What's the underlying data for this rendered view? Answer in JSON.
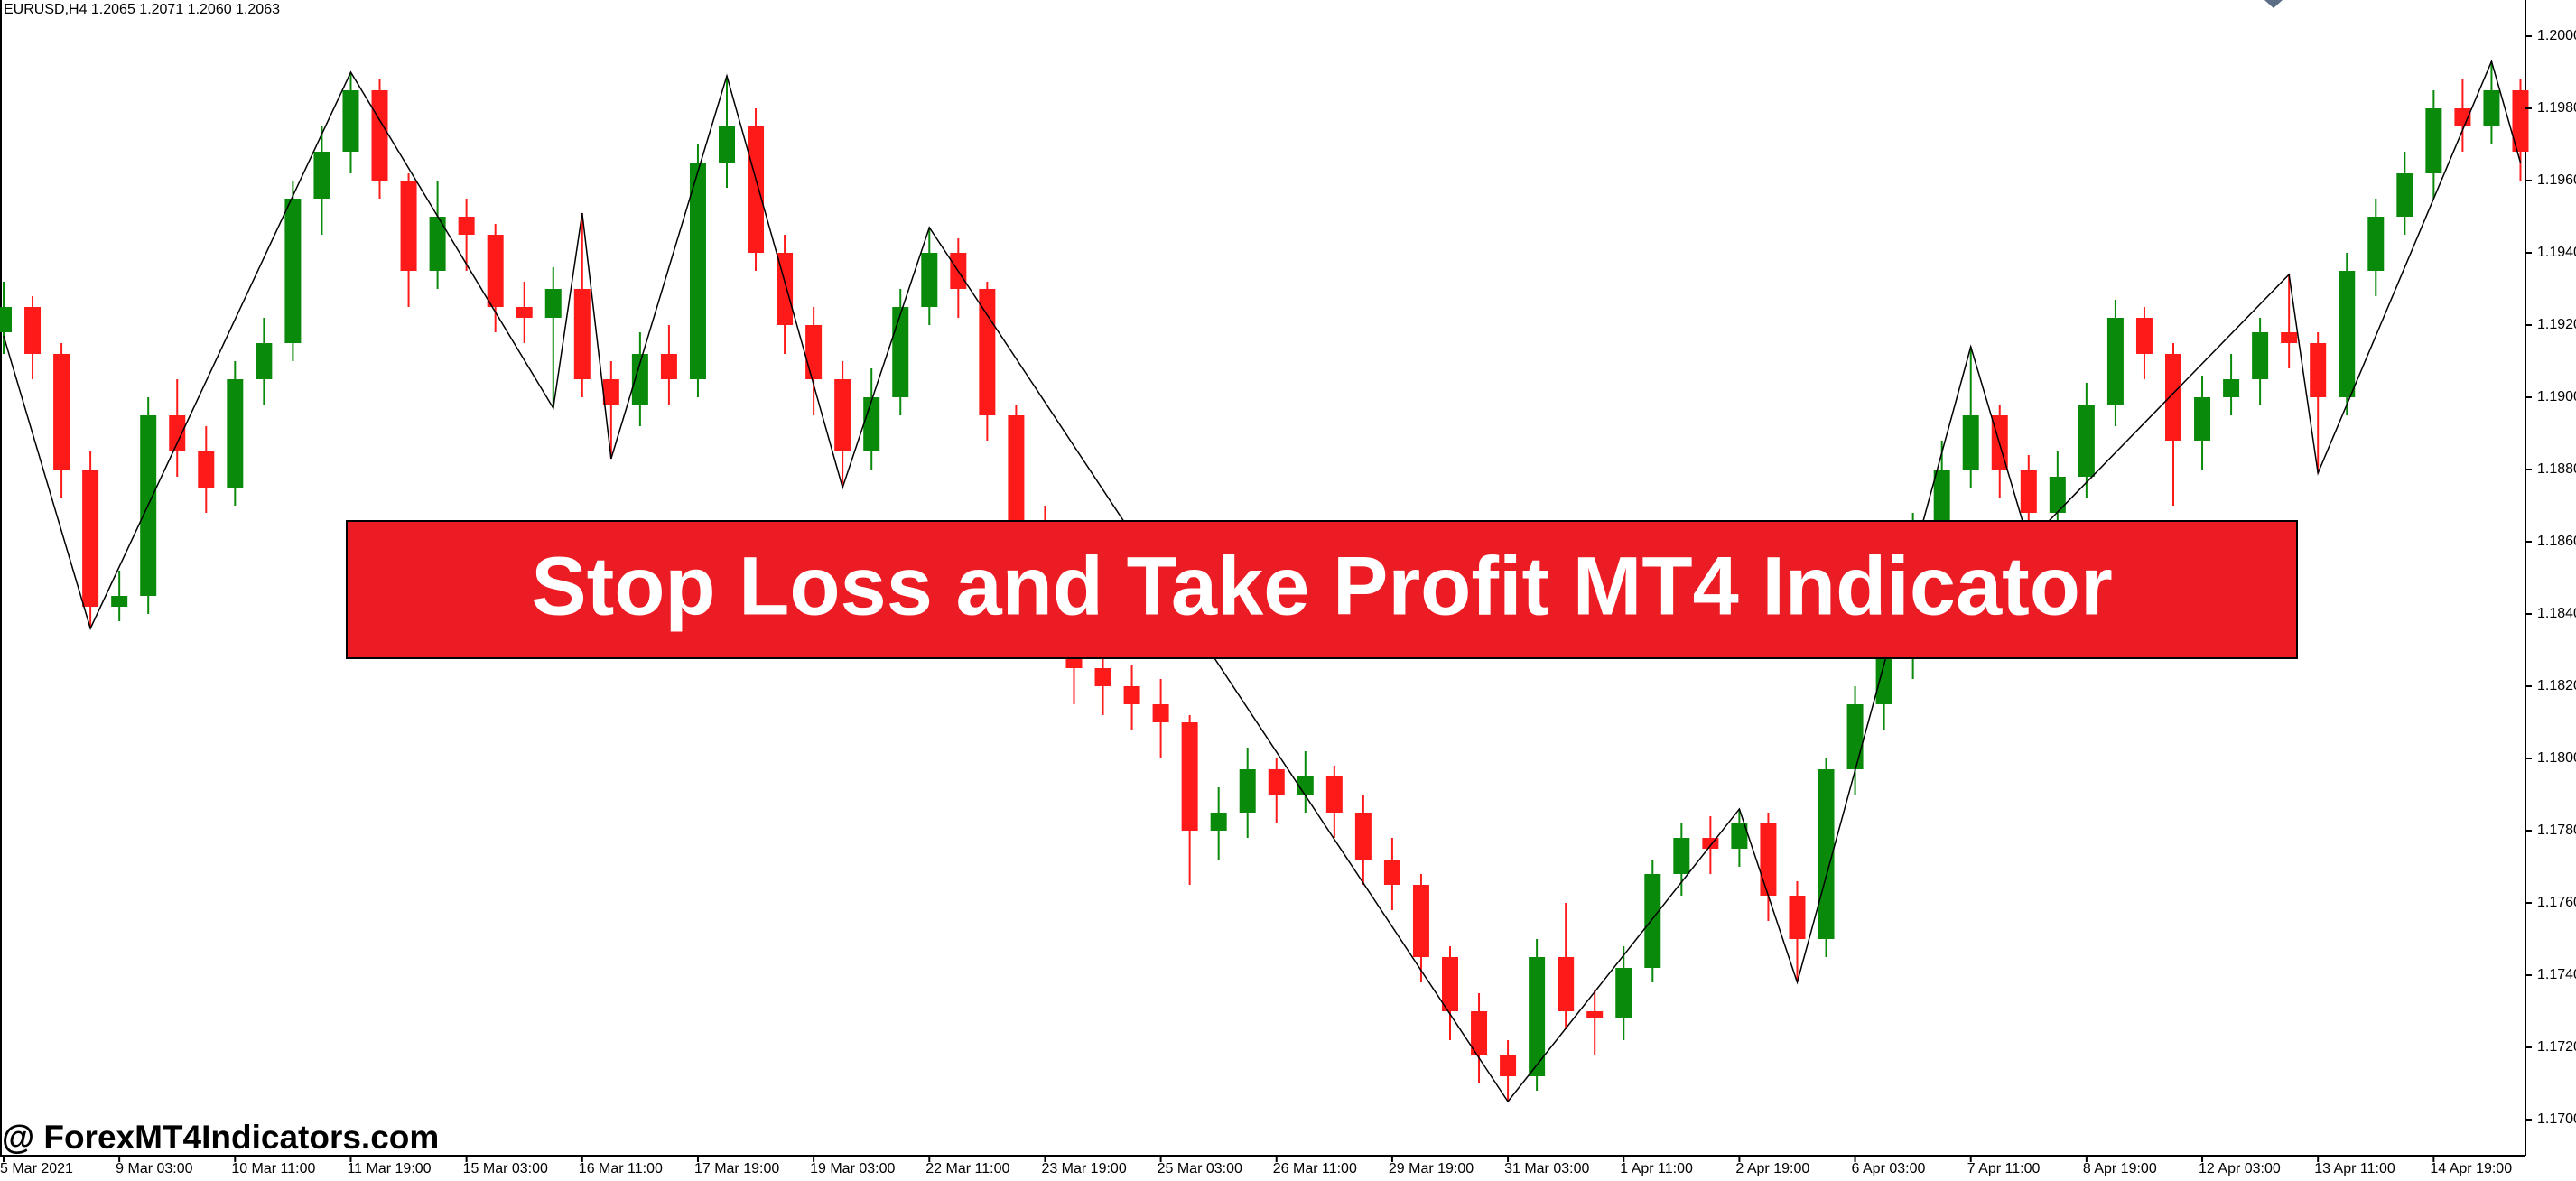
{
  "header": {
    "symbol_info": "EURUSD,H4  1.2065 1.2071 1.2060 1.2063"
  },
  "banner": {
    "title": "Stop Loss and Take Profit MT4 Indicator"
  },
  "watermark": {
    "text": "@ ForexMT4Indicators.com"
  },
  "chart_data": {
    "type": "candlestick",
    "up_color": "#0a8a0a",
    "down_color": "#ff1a1a",
    "zigzag_color": "#000000",
    "categories": [
      "5 Mar 2021",
      null,
      null,
      null,
      "9 Mar 03:00",
      null,
      null,
      null,
      "10 Mar 11:00",
      null,
      null,
      null,
      "11 Mar 19:00",
      null,
      null,
      null,
      "15 Mar 03:00",
      null,
      null,
      null,
      "16 Mar 11:00",
      null,
      null,
      null,
      "17 Mar 19:00",
      null,
      null,
      null,
      "19 Mar 03:00",
      null,
      null,
      null,
      "22 Mar 11:00",
      null,
      null,
      null,
      "23 Mar 19:00",
      null,
      null,
      null,
      "25 Mar 03:00",
      null,
      null,
      null,
      "26 Mar 11:00",
      null,
      null,
      null,
      "29 Mar 19:00",
      null,
      null,
      null,
      "31 Mar 03:00",
      null,
      null,
      null,
      "1 Apr 11:00",
      null,
      null,
      null,
      "2 Apr 19:00",
      null,
      null,
      null,
      "6 Apr 03:00",
      null,
      null,
      null,
      "7 Apr 11:00",
      null,
      null,
      null,
      "8 Apr 19:00",
      null,
      null,
      null,
      "12 Apr 03:00",
      null,
      null,
      null,
      "13 Apr 11:00",
      null,
      null,
      null,
      "14 Apr 19:00",
      null,
      null,
      null
    ],
    "open": [
      1.1918,
      1.1925,
      1.1912,
      1.188,
      1.1842,
      1.1845,
      1.1895,
      1.1885,
      1.1875,
      1.1905,
      1.1915,
      1.1955,
      1.1968,
      1.1985,
      1.196,
      1.1935,
      1.195,
      1.1945,
      1.1925,
      1.1922,
      1.193,
      1.1905,
      1.1898,
      1.1912,
      1.1905,
      1.1965,
      1.1975,
      1.194,
      1.192,
      1.1905,
      1.1885,
      1.19,
      1.1925,
      1.194,
      1.193,
      1.1895,
      1.1865,
      1.184,
      1.1825,
      1.182,
      1.1815,
      1.181,
      1.178,
      1.1785,
      1.1797,
      1.179,
      1.1795,
      1.1785,
      1.1772,
      1.1765,
      1.1745,
      1.173,
      1.1718,
      1.1712,
      1.1745,
      1.173,
      1.1728,
      1.1742,
      1.1768,
      1.1778,
      1.1775,
      1.1782,
      1.1762,
      1.175,
      1.1797,
      1.1815,
      1.1828,
      1.1862,
      1.188,
      1.1895,
      1.188,
      1.1868,
      1.1878,
      1.1898,
      1.1922,
      1.1912,
      1.1888,
      1.19,
      1.1905,
      1.1918,
      1.1915,
      1.19,
      1.1935,
      1.195,
      1.1962,
      1.198,
      1.1975,
      1.1985
    ],
    "high": [
      1.1932,
      1.1928,
      1.1915,
      1.1885,
      1.1852,
      1.19,
      1.1905,
      1.1892,
      1.191,
      1.1922,
      1.196,
      1.1975,
      1.199,
      1.1988,
      1.1962,
      1.196,
      1.1955,
      1.1948,
      1.1932,
      1.1936,
      1.1951,
      1.191,
      1.1918,
      1.192,
      1.197,
      1.1989,
      1.198,
      1.1945,
      1.1925,
      1.191,
      1.1908,
      1.193,
      1.1947,
      1.1944,
      1.1932,
      1.1898,
      1.187,
      1.1845,
      1.1832,
      1.1826,
      1.1822,
      1.1812,
      1.1792,
      1.1803,
      1.18,
      1.1802,
      1.1798,
      1.179,
      1.1778,
      1.1768,
      1.1748,
      1.1735,
      1.1722,
      1.175,
      1.176,
      1.1736,
      1.1748,
      1.1772,
      1.1782,
      1.1784,
      1.1786,
      1.1785,
      1.1766,
      1.18,
      1.182,
      1.1835,
      1.1868,
      1.1888,
      1.1914,
      1.1898,
      1.1884,
      1.1885,
      1.1904,
      1.1927,
      1.1925,
      1.1915,
      1.1906,
      1.1912,
      1.1922,
      1.1934,
      1.1918,
      1.194,
      1.1955,
      1.1968,
      1.1985,
      1.1988,
      1.1993,
      1.1988
    ],
    "low": [
      1.1912,
      1.1905,
      1.1872,
      1.1836,
      1.1838,
      1.184,
      1.1878,
      1.1868,
      1.187,
      1.1898,
      1.191,
      1.1945,
      1.1962,
      1.1955,
      1.1925,
      1.193,
      1.1935,
      1.1918,
      1.1915,
      1.1897,
      1.19,
      1.1883,
      1.1892,
      1.1898,
      1.19,
      1.1958,
      1.1935,
      1.1912,
      1.1895,
      1.1875,
      1.188,
      1.1895,
      1.192,
      1.1922,
      1.1888,
      1.1858,
      1.1835,
      1.1815,
      1.1812,
      1.1808,
      1.18,
      1.1765,
      1.1772,
      1.1778,
      1.1782,
      1.1785,
      1.1778,
      1.1765,
      1.1758,
      1.1738,
      1.1722,
      1.171,
      1.1705,
      1.1708,
      1.1725,
      1.1718,
      1.1722,
      1.1738,
      1.1762,
      1.1768,
      1.177,
      1.1755,
      1.1738,
      1.1745,
      1.179,
      1.1808,
      1.1822,
      1.1855,
      1.1875,
      1.1872,
      1.186,
      1.1862,
      1.1872,
      1.1892,
      1.1905,
      1.187,
      1.188,
      1.1895,
      1.1898,
      1.1908,
      1.1879,
      1.1895,
      1.1928,
      1.1945,
      1.1955,
      1.1968,
      1.197,
      1.196
    ],
    "close": [
      1.1925,
      1.1912,
      1.188,
      1.1842,
      1.1845,
      1.1895,
      1.1885,
      1.1875,
      1.1905,
      1.1915,
      1.1955,
      1.1968,
      1.1985,
      1.196,
      1.1935,
      1.195,
      1.1945,
      1.1925,
      1.1922,
      1.193,
      1.1905,
      1.1898,
      1.1912,
      1.1905,
      1.1965,
      1.1975,
      1.194,
      1.192,
      1.1905,
      1.1885,
      1.19,
      1.1925,
      1.194,
      1.193,
      1.1895,
      1.1865,
      1.184,
      1.1825,
      1.182,
      1.1815,
      1.181,
      1.178,
      1.1785,
      1.1797,
      1.179,
      1.1795,
      1.1785,
      1.1772,
      1.1765,
      1.1745,
      1.173,
      1.1718,
      1.1712,
      1.1745,
      1.173,
      1.1728,
      1.1742,
      1.1768,
      1.1778,
      1.1775,
      1.1782,
      1.1762,
      1.175,
      1.1797,
      1.1815,
      1.1828,
      1.1862,
      1.188,
      1.1895,
      1.188,
      1.1868,
      1.1878,
      1.1898,
      1.1922,
      1.1912,
      1.1888,
      1.19,
      1.1905,
      1.1918,
      1.1915,
      1.19,
      1.1935,
      1.195,
      1.1962,
      1.198,
      1.1975,
      1.1985,
      1.1968
    ],
    "zigzag": {
      "index": [
        0,
        3,
        12,
        19,
        20,
        21,
        25,
        29,
        32,
        52,
        60,
        62,
        68,
        70,
        79,
        80,
        86,
        87
      ],
      "price": [
        1.1917,
        1.1836,
        1.199,
        1.1897,
        1.1951,
        1.1883,
        1.1989,
        1.1875,
        1.1947,
        1.1705,
        1.1786,
        1.1738,
        1.1914,
        1.186,
        1.1934,
        1.1879,
        1.1993,
        1.1965
      ]
    },
    "ylim": [
      1.169,
      1.201
    ],
    "yticks": [
      {
        "value": 1.17,
        "label": "1.1700"
      },
      {
        "value": 1.172,
        "label": "1.1720"
      },
      {
        "value": 1.174,
        "label": "1.1740"
      },
      {
        "value": 1.176,
        "label": "1.1760"
      },
      {
        "value": 1.178,
        "label": "1.1780"
      },
      {
        "value": 1.18,
        "label": "1.1800"
      },
      {
        "value": 1.182,
        "label": "1.1820"
      },
      {
        "value": 1.184,
        "label": "1.1840"
      },
      {
        "value": 1.186,
        "label": "1.1860"
      },
      {
        "value": 1.188,
        "label": "1.1880"
      },
      {
        "value": 1.19,
        "label": "1.1900"
      },
      {
        "value": 1.192,
        "label": "1.1920"
      },
      {
        "value": 1.194,
        "label": "1.1940"
      },
      {
        "value": 1.196,
        "label": "1.1960"
      },
      {
        "value": 1.198,
        "label": "1.1980"
      },
      {
        "value": 1.2,
        "label": "1.2000"
      }
    ]
  }
}
